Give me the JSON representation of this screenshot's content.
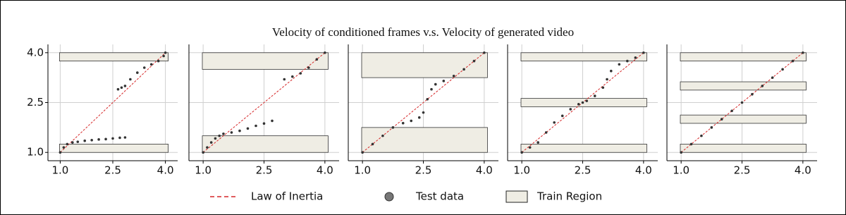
{
  "title": "Velocity of conditioned frames v.s. Velocity of generated video",
  "chart_data": [
    {
      "type": "scatter",
      "show_yticklabels": true,
      "grid": true,
      "xlim": [
        0.65,
        4.35
      ],
      "ylim": [
        0.75,
        4.25
      ],
      "xticks": [
        {
          "value": 1.0,
          "label": "1.0"
        },
        {
          "value": 2.5,
          "label": "2.5"
        },
        {
          "value": 4.0,
          "label": "4.0"
        }
      ],
      "yticks": [
        {
          "value": 1.0,
          "label": "1.0"
        },
        {
          "value": 2.5,
          "label": "2.5"
        },
        {
          "value": 4.0,
          "label": "4.0"
        }
      ],
      "regions": {
        "name": "Train Region",
        "color": "#efede4",
        "xspan": [
          0.98,
          4.08
        ],
        "bands": [
          [
            1.0,
            1.25
          ],
          [
            3.75,
            4.0
          ]
        ]
      },
      "series": [
        {
          "name": "Law of Inertia",
          "color": "#d62728",
          "x": [
            1.0,
            4.0
          ],
          "values": [
            1.0,
            4.0
          ]
        },
        {
          "name": "Test data",
          "color": "#333333",
          "x": [
            1.0,
            1.1,
            1.2,
            1.35,
            1.5,
            1.7,
            1.9,
            2.1,
            2.3,
            2.5,
            2.7,
            2.85,
            2.65,
            2.75,
            2.85,
            3.0,
            3.2,
            3.4,
            3.6,
            3.8,
            3.95,
            4.0
          ],
          "values": [
            1.0,
            1.15,
            1.25,
            1.3,
            1.32,
            1.35,
            1.37,
            1.39,
            1.4,
            1.42,
            1.44,
            1.45,
            2.9,
            2.95,
            3.0,
            3.2,
            3.4,
            3.55,
            3.65,
            3.75,
            3.9,
            4.0
          ]
        }
      ]
    },
    {
      "type": "scatter",
      "show_yticklabels": false,
      "grid": true,
      "xlim": [
        0.65,
        4.35
      ],
      "ylim": [
        0.75,
        4.25
      ],
      "xticks": [
        {
          "value": 1.0,
          "label": "1.0"
        },
        {
          "value": 2.5,
          "label": "2.5"
        },
        {
          "value": 4.0,
          "label": "4.0"
        }
      ],
      "yticks": [
        1,
        2.5,
        4
      ],
      "regions": {
        "color": "#efede4",
        "xspan": [
          0.98,
          4.08
        ],
        "bands": [
          [
            1.0,
            1.5
          ],
          [
            3.5,
            4.0
          ]
        ]
      },
      "series": [
        {
          "color": "#d62728",
          "x": [
            1.0,
            4.0
          ],
          "values": [
            1.0,
            4.0
          ]
        },
        {
          "color": "#333333",
          "x": [
            1.0,
            1.1,
            1.2,
            1.3,
            1.4,
            1.5,
            1.7,
            1.9,
            2.1,
            2.3,
            2.5,
            2.7,
            3.0,
            3.2,
            3.4,
            3.6,
            3.8,
            4.0
          ],
          "values": [
            1.0,
            1.15,
            1.3,
            1.42,
            1.5,
            1.56,
            1.6,
            1.65,
            1.72,
            1.8,
            1.87,
            1.95,
            3.2,
            3.28,
            3.38,
            3.55,
            3.8,
            4.0
          ]
        }
      ]
    },
    {
      "type": "scatter",
      "show_yticklabels": false,
      "grid": true,
      "xlim": [
        0.65,
        4.35
      ],
      "ylim": [
        0.75,
        4.25
      ],
      "xticks": [
        {
          "value": 1.0,
          "label": "1.0"
        },
        {
          "value": 2.5,
          "label": "2.5"
        },
        {
          "value": 4.0,
          "label": "4.0"
        }
      ],
      "yticks": [
        1,
        2.5,
        4
      ],
      "regions": {
        "color": "#efede4",
        "xspan": [
          0.98,
          4.08
        ],
        "bands": [
          [
            1.0,
            1.75
          ],
          [
            3.25,
            4.0
          ]
        ]
      },
      "series": [
        {
          "color": "#d62728",
          "x": [
            1.0,
            4.0
          ],
          "values": [
            1.0,
            4.0
          ]
        },
        {
          "color": "#333333",
          "x": [
            1.0,
            1.25,
            1.5,
            1.75,
            2.0,
            2.2,
            2.4,
            2.5,
            2.6,
            2.7,
            2.8,
            3.0,
            3.25,
            3.5,
            3.75,
            4.0
          ],
          "values": [
            1.0,
            1.25,
            1.5,
            1.75,
            1.88,
            1.95,
            2.05,
            2.2,
            2.6,
            2.9,
            3.05,
            3.15,
            3.3,
            3.5,
            3.75,
            4.0
          ]
        }
      ]
    },
    {
      "type": "scatter",
      "show_yticklabels": false,
      "grid": true,
      "xlim": [
        0.65,
        4.35
      ],
      "ylim": [
        0.75,
        4.25
      ],
      "xticks": [
        {
          "value": 1.0,
          "label": "1.0"
        },
        {
          "value": 2.5,
          "label": "2.5"
        },
        {
          "value": 4.0,
          "label": "4.0"
        }
      ],
      "yticks": [
        1,
        2.5,
        4
      ],
      "regions": {
        "color": "#efede4",
        "xspan": [
          0.98,
          4.08
        ],
        "bands": [
          [
            1.0,
            1.25
          ],
          [
            2.375,
            2.625
          ],
          [
            3.75,
            4.0
          ]
        ]
      },
      "series": [
        {
          "color": "#d62728",
          "x": [
            1.0,
            4.0
          ],
          "values": [
            1.0,
            4.0
          ]
        },
        {
          "color": "#333333",
          "x": [
            1.0,
            1.2,
            1.4,
            1.6,
            1.8,
            2.0,
            2.2,
            2.4,
            2.5,
            2.6,
            2.8,
            3.0,
            3.1,
            3.2,
            3.4,
            3.6,
            3.8,
            4.0
          ],
          "values": [
            1.0,
            1.15,
            1.3,
            1.6,
            1.9,
            2.1,
            2.3,
            2.45,
            2.5,
            2.55,
            2.7,
            2.95,
            3.2,
            3.45,
            3.65,
            3.75,
            3.85,
            4.0
          ]
        }
      ]
    },
    {
      "type": "scatter",
      "show_yticklabels": false,
      "grid": true,
      "xlim": [
        0.65,
        4.35
      ],
      "ylim": [
        0.75,
        4.25
      ],
      "xticks": [
        {
          "value": 1.0,
          "label": "1.0"
        },
        {
          "value": 2.5,
          "label": "2.5"
        },
        {
          "value": 4.0,
          "label": "4.0"
        }
      ],
      "yticks": [
        1,
        2.5,
        4
      ],
      "regions": {
        "color": "#efede4",
        "xspan": [
          0.98,
          4.08
        ],
        "bands": [
          [
            1.0,
            1.25
          ],
          [
            1.875,
            2.125
          ],
          [
            2.875,
            3.125
          ],
          [
            3.75,
            4.0
          ]
        ]
      },
      "series": [
        {
          "color": "#d62728",
          "x": [
            1.0,
            4.0
          ],
          "values": [
            1.0,
            4.0
          ]
        },
        {
          "color": "#333333",
          "x": [
            1.0,
            1.25,
            1.5,
            1.75,
            2.0,
            2.25,
            2.5,
            2.75,
            3.0,
            3.25,
            3.5,
            3.75,
            4.0
          ],
          "values": [
            1.0,
            1.25,
            1.5,
            1.75,
            2.0,
            2.25,
            2.5,
            2.75,
            3.0,
            3.25,
            3.5,
            3.75,
            4.0
          ]
        }
      ]
    }
  ]
}
